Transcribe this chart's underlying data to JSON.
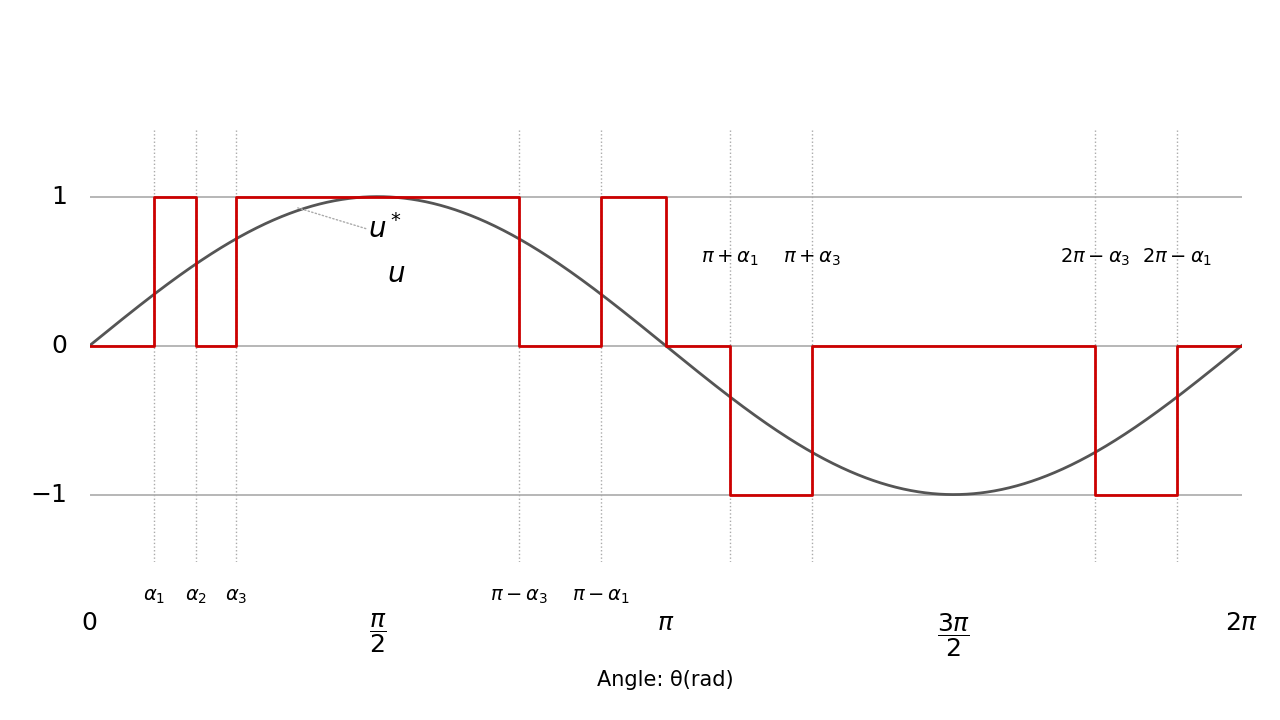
{
  "alpha1": 0.35,
  "alpha2": 0.58,
  "alpha3": 0.8,
  "background_color": "#ffffff",
  "sine_color": "#555555",
  "wave_color": "#cc0000",
  "dotted_line_color": "#aaaaaa",
  "hline_color": "#aaaaaa",
  "annotation_fontsize": 14,
  "axis_tick_fontsize": 18,
  "xlabel_fontsize": 15,
  "xlabel": "Angle: θ(rad)",
  "u_label": "u",
  "ustar_label": "u*"
}
